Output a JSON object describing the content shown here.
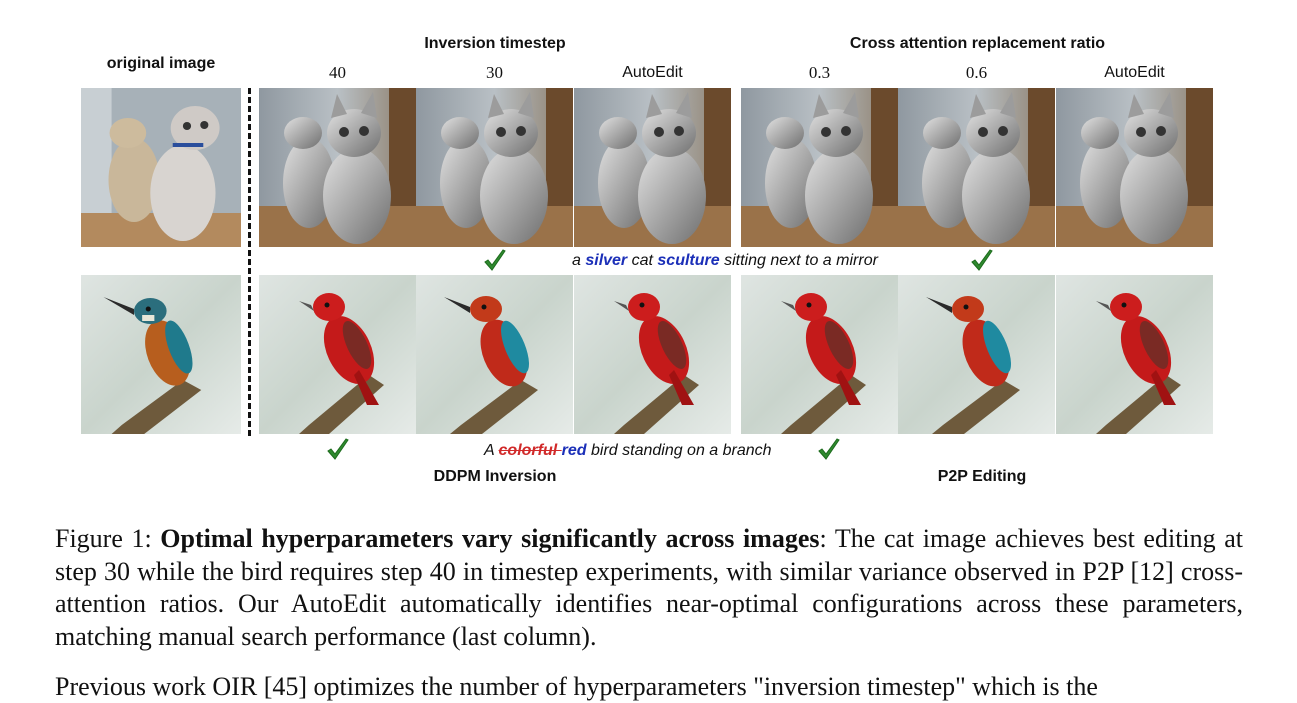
{
  "headers": {
    "original": "original image",
    "inversion": "Inversion timestep",
    "cross_attention": "Cross attention replacement ratio",
    "ddpm": "DDPM Inversion",
    "p2p": "P2P Editing"
  },
  "columns": [
    "40",
    "30",
    "AutoEdit",
    "0.3",
    "0.6",
    "AutoEdit"
  ],
  "prompts": {
    "cat": {
      "pre": "a ",
      "kw1": "silver",
      "mid1": " cat ",
      "kw2": "sculture",
      "post": " sitting next to a mirror"
    },
    "bird": {
      "pre": "A ",
      "struck": "colorful ",
      "kw": "red",
      "post": " bird standing on a branch"
    }
  },
  "caption": {
    "label": "Figure 1: ",
    "bold": "Optimal hyperparameters vary significantly across images",
    "text": ": The cat image achieves best editing at step 30 while the bird requires step 40 in timestep experiments, with similar variance observed in P2P [12] cross-attention ratios. Our AutoEdit automatically identifies near-optimal configurations across these parameters, matching manual search performance (last column)."
  },
  "next_paragraph": "Previous work OIR [45] optimizes the number of hyperparameters \"inversion timestep\" which is the"
}
